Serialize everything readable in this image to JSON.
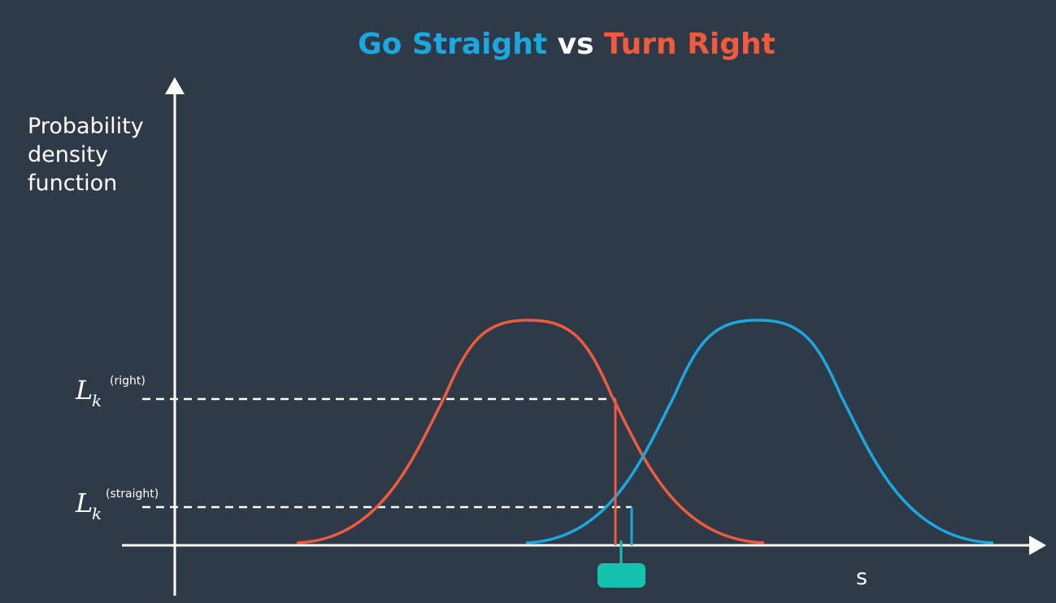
{
  "title": {
    "part1": "Go Straight",
    "part2": " vs ",
    "part3": "Turn Right"
  },
  "y_axis_label": {
    "line1": "Probability",
    "line2": "density",
    "line3": "function"
  },
  "x_axis_label": "s",
  "likelihood_labels": {
    "right": {
      "main": "L",
      "sub": "k",
      "sup": "(right)"
    },
    "straight": {
      "main": "L",
      "sub": "k",
      "sup": "(straight)"
    }
  },
  "colors": {
    "background": "#2f3a48",
    "go_straight": "#1ba8e0",
    "turn_right": "#ef5b3c",
    "axis": "#ffffff",
    "vehicle_marker": "#13c3b0"
  },
  "curves": [
    {
      "name": "Turn Right",
      "color_key": "turn_right",
      "center": 0.33,
      "width": 0.9
    },
    {
      "name": "Go Straight",
      "color_key": "go_straight",
      "center": 0.67,
      "width": 0.9
    }
  ],
  "observation": {
    "s": 0.46,
    "likelihood_right": 0.67,
    "likelihood_straight": 0.17
  },
  "icons": {
    "vehicle": "vehicle-marker-icon",
    "y_arrow": "arrow-up-icon",
    "x_arrow": "arrow-right-icon"
  }
}
